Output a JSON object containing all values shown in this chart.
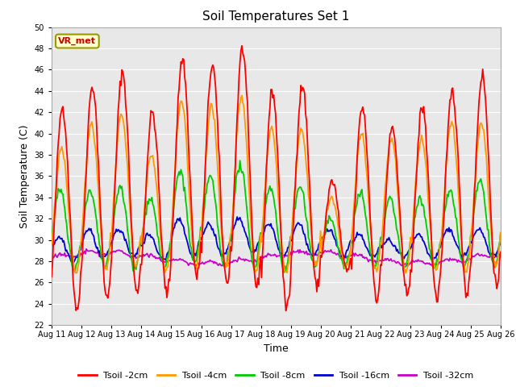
{
  "title": "Soil Temperatures Set 1",
  "xlabel": "Time",
  "ylabel": "Soil Temperature (C)",
  "ylim": [
    22,
    50
  ],
  "yticks": [
    22,
    24,
    26,
    28,
    30,
    32,
    34,
    36,
    38,
    40,
    42,
    44,
    46,
    48,
    50
  ],
  "x_labels": [
    "Aug 11",
    "Aug 12",
    "Aug 13",
    "Aug 14",
    "Aug 15",
    "Aug 16",
    "Aug 17",
    "Aug 18",
    "Aug 19",
    "Aug 20",
    "Aug 21",
    "Aug 22",
    "Aug 23",
    "Aug 24",
    "Aug 25",
    "Aug 26"
  ],
  "annotation_text": "VR_met",
  "annotation_color": "#cc0000",
  "annotation_bg": "#ffffcc",
  "annotation_border": "#999900",
  "bg_color": "#e8e8e8",
  "grid_color": "#ffffff",
  "series_colors": {
    "Tsoil -2cm": "#ff0000",
    "Tsoil -4cm": "#ff9900",
    "Tsoil -8cm": "#00cc00",
    "Tsoil -16cm": "#0000cc",
    "Tsoil -32cm": "#cc00cc"
  },
  "peaks_2cm": [
    42.5,
    44.5,
    45.8,
    42.0,
    47.0,
    46.5,
    48.0,
    44.0,
    44.5,
    35.5,
    42.5,
    40.5,
    42.5,
    44.0,
    45.5
  ],
  "troughs_2cm": [
    23.5,
    24.5,
    25.0,
    25.0,
    26.5,
    26.0,
    25.5,
    23.5,
    25.5,
    27.0,
    24.5,
    25.0,
    24.5,
    25.0,
    25.5
  ],
  "peaks_4cm": [
    38.5,
    41.0,
    41.8,
    38.0,
    43.0,
    42.5,
    43.5,
    40.5,
    40.5,
    34.0,
    40.0,
    39.5,
    39.5,
    41.0,
    41.0
  ],
  "troughs_4cm": [
    27.0,
    27.2,
    27.5,
    27.0,
    27.5,
    27.5,
    27.0,
    27.0,
    27.5,
    27.5,
    27.0,
    27.0,
    27.0,
    27.0,
    27.5
  ],
  "peaks_8cm": [
    34.8,
    34.5,
    35.0,
    34.0,
    36.5,
    36.0,
    37.0,
    35.0,
    35.0,
    32.0,
    34.5,
    34.0,
    34.0,
    34.5,
    35.5
  ],
  "troughs_8cm": [
    27.2,
    27.5,
    27.2,
    27.5,
    27.8,
    27.5,
    27.5,
    27.2,
    27.5,
    27.5,
    27.5,
    27.5,
    27.5,
    27.5,
    27.5
  ],
  "peaks_16cm": [
    30.2,
    31.0,
    31.0,
    30.5,
    32.0,
    31.5,
    32.0,
    31.5,
    31.5,
    31.0,
    30.5,
    30.0,
    30.5,
    31.0,
    31.0
  ],
  "troughs_16cm": [
    28.0,
    28.2,
    28.5,
    28.2,
    28.5,
    28.5,
    28.8,
    28.5,
    28.5,
    28.5,
    28.5,
    28.5,
    28.2,
    28.5,
    28.5
  ],
  "mean_32cm": 28.3,
  "amp_32cm": 0.5,
  "n_points": 480,
  "days": 15
}
